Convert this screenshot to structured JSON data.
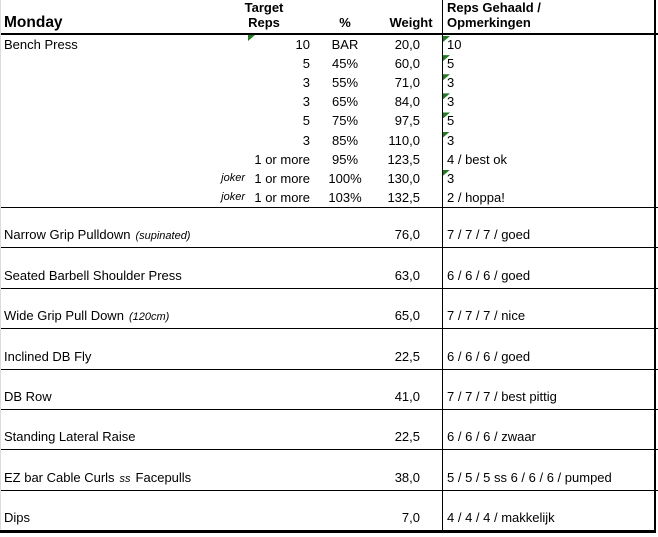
{
  "header": {
    "day": "Monday",
    "target_line1": "Target",
    "target_line2": "Reps",
    "pct_label": "%",
    "weight_label": "Weight",
    "results_line1": "Reps Gehaald /",
    "results_line2": "Opmerkingen"
  },
  "bench": {
    "name": "Bench Press",
    "rows": [
      {
        "joker": "",
        "reps": "10",
        "pct": "BAR",
        "weight": "20,0",
        "result": "10",
        "reps_flag": true,
        "result_flag": true
      },
      {
        "joker": "",
        "reps": "5",
        "pct": "45%",
        "weight": "60,0",
        "result": "5",
        "result_flag": true
      },
      {
        "joker": "",
        "reps": "3",
        "pct": "55%",
        "weight": "71,0",
        "result": "3",
        "result_flag": true
      },
      {
        "joker": "",
        "reps": "3",
        "pct": "65%",
        "weight": "84,0",
        "result": "3",
        "result_flag": true
      },
      {
        "joker": "",
        "reps": "5",
        "pct": "75%",
        "weight": "97,5",
        "result": "5",
        "result_flag": true
      },
      {
        "joker": "",
        "reps": "3",
        "pct": "85%",
        "weight": "110,0",
        "result": "3",
        "result_flag": true
      },
      {
        "joker": "",
        "reps": "1 or more",
        "pct": "95%",
        "weight": "123,5",
        "result": "4 / best ok",
        "result_flag": false
      },
      {
        "joker": "joker",
        "reps": "1 or more",
        "pct": "100%",
        "weight": "130,0",
        "result": "3",
        "result_flag": true
      },
      {
        "joker": "joker",
        "reps": "1 or more",
        "pct": "103%",
        "weight": "132,5",
        "result": "2 / hoppa!",
        "result_flag": false
      }
    ]
  },
  "exercises": [
    {
      "name": "Narrow Grip Pulldown",
      "note": "(supinated)",
      "name2": "",
      "weight": "76,0",
      "result": "7 / 7 / 7 / goed"
    },
    {
      "name": "Seated Barbell Shoulder Press",
      "note": "",
      "name2": "",
      "weight": "63,0",
      "result": "6 / 6 / 6 / goed"
    },
    {
      "name": "Wide Grip Pull Down",
      "note": "(120cm)",
      "name2": "",
      "weight": "65,0",
      "result": "7 / 7 / 7 / nice"
    },
    {
      "name": "Inclined DB Fly",
      "note": "",
      "name2": "",
      "weight": "22,5",
      "result": "6 / 6 / 6 / goed"
    },
    {
      "name": "DB Row",
      "note": "",
      "name2": "",
      "weight": "41,0",
      "result": "7 / 7 / 7 / best pittig"
    },
    {
      "name": "Standing Lateral Raise",
      "note": "",
      "name2": "",
      "weight": "22,5",
      "result": "6 / 6 / 6 / zwaar"
    },
    {
      "name": "EZ bar Cable Curls",
      "note": "ss",
      "name2": "Facepulls",
      "weight": "38,0",
      "result": "5 / 5 / 5 ss 6 / 6 / 6 / pumped"
    },
    {
      "name": "Dips",
      "note": "",
      "name2": "",
      "weight": "7,0",
      "result": "4 / 4 / 4 / makkelijk"
    }
  ],
  "colors": {
    "flag_green": "#217a21",
    "border": "#000000",
    "background": "#ffffff"
  }
}
